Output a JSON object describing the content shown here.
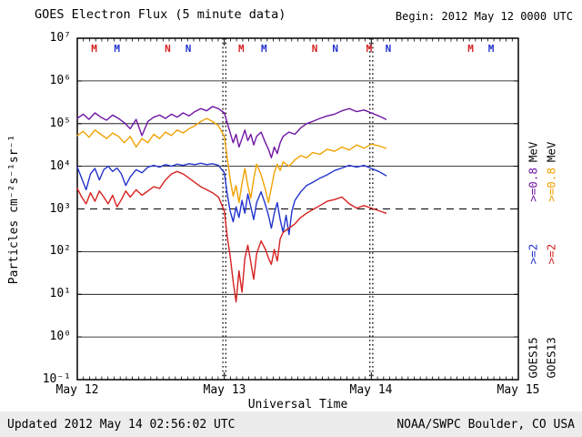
{
  "header": {
    "title": "GOES Electron Flux (5 minute data)",
    "begin": "Begin: 2012 May 12 0000 UTC"
  },
  "footer": {
    "updated": "Updated 2012 May 14 02:56:02 UTC",
    "credit": "NOAA/SWPC Boulder, CO USA"
  },
  "legend": {
    "mev": "MeV",
    "columns": [
      {
        "satellite": "GOES15",
        "ch2": ">=2",
        "ch08": ">=0.8",
        "ch2_color": "#2233cc",
        "ch08_color": "#6f15a3"
      },
      {
        "satellite": "GOES13",
        "ch2": ">=2",
        "ch08": ">=0.8",
        "ch2_color": "#d62020",
        "ch08_color": "#f0a202"
      }
    ]
  },
  "chart_data": {
    "type": "line",
    "title": "GOES Electron Flux (5 minute data)",
    "xlabel": "Universal Time",
    "ylabel": "Particles cm⁻²s⁻¹sr⁻¹",
    "x_axis": {
      "day_labels": [
        "May 12",
        "May 13",
        "May 14",
        "May 15"
      ],
      "range_days": [
        0,
        3
      ],
      "minor_tick_hours": 1
    },
    "y_axis": {
      "scale": "log10",
      "exponent_range": [
        -1,
        7
      ],
      "tick_labels": [
        "10⁷",
        "10⁶",
        "10⁵",
        "10⁴",
        "10³",
        "10²",
        "10¹",
        "10⁰",
        "10⁻¹"
      ]
    },
    "grid": {
      "solid_decade_exponents": [
        0,
        1,
        2,
        4,
        5,
        6
      ],
      "dashed_threshold_exponent": 3,
      "day_boundary_dotted_days": [
        1,
        2
      ]
    },
    "series": [
      {
        "id": "goes15-0.8mev",
        "name": "GOES15 >=0.8 MeV",
        "color": "#6f15a3",
        "points_t_days_log10_flux": [
          [
            0.0,
            5.12
          ],
          [
            0.04,
            5.22
          ],
          [
            0.08,
            5.1
          ],
          [
            0.12,
            5.25
          ],
          [
            0.16,
            5.15
          ],
          [
            0.2,
            5.08
          ],
          [
            0.24,
            5.2
          ],
          [
            0.28,
            5.12
          ],
          [
            0.32,
            5.02
          ],
          [
            0.36,
            4.88
          ],
          [
            0.4,
            5.1
          ],
          [
            0.44,
            4.72
          ],
          [
            0.48,
            5.05
          ],
          [
            0.52,
            5.15
          ],
          [
            0.56,
            5.2
          ],
          [
            0.6,
            5.12
          ],
          [
            0.64,
            5.22
          ],
          [
            0.68,
            5.15
          ],
          [
            0.72,
            5.25
          ],
          [
            0.76,
            5.18
          ],
          [
            0.8,
            5.28
          ],
          [
            0.84,
            5.35
          ],
          [
            0.88,
            5.3
          ],
          [
            0.92,
            5.4
          ],
          [
            0.96,
            5.35
          ],
          [
            1.0,
            5.25
          ],
          [
            1.03,
            4.9
          ],
          [
            1.06,
            4.55
          ],
          [
            1.08,
            4.75
          ],
          [
            1.1,
            4.45
          ],
          [
            1.12,
            4.65
          ],
          [
            1.14,
            4.85
          ],
          [
            1.16,
            4.6
          ],
          [
            1.18,
            4.75
          ],
          [
            1.2,
            4.5
          ],
          [
            1.22,
            4.7
          ],
          [
            1.25,
            4.8
          ],
          [
            1.28,
            4.55
          ],
          [
            1.3,
            4.4
          ],
          [
            1.32,
            4.2
          ],
          [
            1.34,
            4.45
          ],
          [
            1.36,
            4.3
          ],
          [
            1.38,
            4.55
          ],
          [
            1.4,
            4.7
          ],
          [
            1.44,
            4.8
          ],
          [
            1.48,
            4.75
          ],
          [
            1.52,
            4.9
          ],
          [
            1.56,
            5.0
          ],
          [
            1.6,
            5.05
          ],
          [
            1.65,
            5.12
          ],
          [
            1.7,
            5.18
          ],
          [
            1.75,
            5.22
          ],
          [
            1.8,
            5.3
          ],
          [
            1.85,
            5.35
          ],
          [
            1.9,
            5.28
          ],
          [
            1.95,
            5.32
          ],
          [
            2.0,
            5.25
          ],
          [
            2.05,
            5.18
          ],
          [
            2.1,
            5.1
          ]
        ]
      },
      {
        "id": "goes13-0.8mev",
        "name": "GOES13 >=0.8 MeV",
        "color": "#f0a202",
        "points_t_days_log10_flux": [
          [
            0.0,
            4.72
          ],
          [
            0.04,
            4.82
          ],
          [
            0.08,
            4.68
          ],
          [
            0.12,
            4.85
          ],
          [
            0.16,
            4.75
          ],
          [
            0.2,
            4.65
          ],
          [
            0.24,
            4.78
          ],
          [
            0.28,
            4.7
          ],
          [
            0.32,
            4.55
          ],
          [
            0.36,
            4.7
          ],
          [
            0.4,
            4.45
          ],
          [
            0.44,
            4.65
          ],
          [
            0.48,
            4.55
          ],
          [
            0.52,
            4.75
          ],
          [
            0.56,
            4.65
          ],
          [
            0.6,
            4.8
          ],
          [
            0.64,
            4.72
          ],
          [
            0.68,
            4.85
          ],
          [
            0.72,
            4.78
          ],
          [
            0.76,
            4.88
          ],
          [
            0.8,
            4.95
          ],
          [
            0.84,
            5.05
          ],
          [
            0.88,
            5.12
          ],
          [
            0.92,
            5.05
          ],
          [
            0.96,
            4.95
          ],
          [
            1.0,
            4.7
          ],
          [
            1.02,
            4.2
          ],
          [
            1.04,
            3.7
          ],
          [
            1.06,
            3.3
          ],
          [
            1.08,
            3.55
          ],
          [
            1.1,
            3.15
          ],
          [
            1.12,
            3.6
          ],
          [
            1.14,
            3.95
          ],
          [
            1.16,
            3.55
          ],
          [
            1.18,
            3.25
          ],
          [
            1.2,
            3.7
          ],
          [
            1.22,
            4.05
          ],
          [
            1.25,
            3.8
          ],
          [
            1.28,
            3.45
          ],
          [
            1.3,
            3.15
          ],
          [
            1.32,
            3.5
          ],
          [
            1.34,
            3.85
          ],
          [
            1.36,
            4.05
          ],
          [
            1.38,
            3.9
          ],
          [
            1.4,
            4.1
          ],
          [
            1.44,
            4.0
          ],
          [
            1.48,
            4.15
          ],
          [
            1.52,
            4.25
          ],
          [
            1.56,
            4.2
          ],
          [
            1.6,
            4.32
          ],
          [
            1.65,
            4.28
          ],
          [
            1.7,
            4.4
          ],
          [
            1.75,
            4.35
          ],
          [
            1.8,
            4.45
          ],
          [
            1.85,
            4.38
          ],
          [
            1.9,
            4.5
          ],
          [
            1.95,
            4.42
          ],
          [
            2.0,
            4.52
          ],
          [
            2.05,
            4.48
          ],
          [
            2.1,
            4.42
          ]
        ]
      },
      {
        "id": "goes15-2mev",
        "name": "GOES15 >=2 MeV",
        "color": "#2233cc",
        "points_t_days_log10_flux": [
          [
            0.0,
            3.98
          ],
          [
            0.03,
            3.72
          ],
          [
            0.06,
            3.45
          ],
          [
            0.09,
            3.82
          ],
          [
            0.12,
            3.95
          ],
          [
            0.15,
            3.68
          ],
          [
            0.18,
            3.92
          ],
          [
            0.21,
            4.0
          ],
          [
            0.24,
            3.88
          ],
          [
            0.27,
            3.96
          ],
          [
            0.3,
            3.82
          ],
          [
            0.33,
            3.55
          ],
          [
            0.36,
            3.75
          ],
          [
            0.4,
            3.92
          ],
          [
            0.44,
            3.85
          ],
          [
            0.48,
            3.98
          ],
          [
            0.52,
            4.02
          ],
          [
            0.56,
            3.98
          ],
          [
            0.6,
            4.04
          ],
          [
            0.64,
            4.0
          ],
          [
            0.68,
            4.05
          ],
          [
            0.72,
            4.02
          ],
          [
            0.76,
            4.06
          ],
          [
            0.8,
            4.04
          ],
          [
            0.84,
            4.07
          ],
          [
            0.88,
            4.04
          ],
          [
            0.92,
            4.06
          ],
          [
            0.96,
            4.02
          ],
          [
            1.0,
            3.85
          ],
          [
            1.02,
            3.35
          ],
          [
            1.04,
            2.95
          ],
          [
            1.06,
            2.7
          ],
          [
            1.08,
            3.05
          ],
          [
            1.1,
            2.8
          ],
          [
            1.12,
            3.2
          ],
          [
            1.14,
            2.9
          ],
          [
            1.16,
            3.35
          ],
          [
            1.18,
            3.05
          ],
          [
            1.2,
            2.75
          ],
          [
            1.22,
            3.15
          ],
          [
            1.25,
            3.4
          ],
          [
            1.28,
            3.1
          ],
          [
            1.3,
            2.85
          ],
          [
            1.32,
            2.55
          ],
          [
            1.34,
            2.9
          ],
          [
            1.36,
            3.15
          ],
          [
            1.38,
            2.75
          ],
          [
            1.4,
            2.45
          ],
          [
            1.42,
            2.85
          ],
          [
            1.44,
            2.4
          ],
          [
            1.46,
            2.95
          ],
          [
            1.48,
            3.2
          ],
          [
            1.52,
            3.4
          ],
          [
            1.56,
            3.55
          ],
          [
            1.6,
            3.62
          ],
          [
            1.65,
            3.72
          ],
          [
            1.7,
            3.8
          ],
          [
            1.75,
            3.9
          ],
          [
            1.8,
            3.96
          ],
          [
            1.85,
            4.02
          ],
          [
            1.9,
            3.98
          ],
          [
            1.95,
            4.02
          ],
          [
            2.0,
            3.95
          ],
          [
            2.05,
            3.88
          ],
          [
            2.1,
            3.78
          ]
        ]
      },
      {
        "id": "goes13-2mev",
        "name": "GOES13 >=2 MeV",
        "color": "#d62020",
        "points_t_days_log10_flux": [
          [
            0.0,
            3.48
          ],
          [
            0.03,
            3.28
          ],
          [
            0.06,
            3.12
          ],
          [
            0.09,
            3.38
          ],
          [
            0.12,
            3.18
          ],
          [
            0.15,
            3.42
          ],
          [
            0.18,
            3.28
          ],
          [
            0.21,
            3.12
          ],
          [
            0.24,
            3.32
          ],
          [
            0.27,
            3.05
          ],
          [
            0.3,
            3.22
          ],
          [
            0.33,
            3.42
          ],
          [
            0.36,
            3.28
          ],
          [
            0.4,
            3.45
          ],
          [
            0.44,
            3.32
          ],
          [
            0.48,
            3.42
          ],
          [
            0.52,
            3.52
          ],
          [
            0.56,
            3.48
          ],
          [
            0.6,
            3.68
          ],
          [
            0.64,
            3.82
          ],
          [
            0.68,
            3.88
          ],
          [
            0.72,
            3.82
          ],
          [
            0.76,
            3.72
          ],
          [
            0.8,
            3.62
          ],
          [
            0.84,
            3.52
          ],
          [
            0.88,
            3.45
          ],
          [
            0.92,
            3.38
          ],
          [
            0.96,
            3.28
          ],
          [
            1.0,
            2.95
          ],
          [
            1.02,
            2.35
          ],
          [
            1.04,
            1.9
          ],
          [
            1.06,
            1.3
          ],
          [
            1.08,
            0.82
          ],
          [
            1.1,
            1.55
          ],
          [
            1.12,
            1.05
          ],
          [
            1.14,
            1.85
          ],
          [
            1.16,
            2.15
          ],
          [
            1.18,
            1.75
          ],
          [
            1.2,
            1.35
          ],
          [
            1.22,
            1.95
          ],
          [
            1.25,
            2.25
          ],
          [
            1.28,
            2.05
          ],
          [
            1.3,
            1.85
          ],
          [
            1.32,
            1.7
          ],
          [
            1.34,
            2.05
          ],
          [
            1.36,
            1.78
          ],
          [
            1.38,
            2.3
          ],
          [
            1.4,
            2.45
          ],
          [
            1.44,
            2.55
          ],
          [
            1.48,
            2.65
          ],
          [
            1.52,
            2.8
          ],
          [
            1.56,
            2.9
          ],
          [
            1.6,
            2.98
          ],
          [
            1.65,
            3.08
          ],
          [
            1.7,
            3.18
          ],
          [
            1.75,
            3.22
          ],
          [
            1.8,
            3.28
          ],
          [
            1.85,
            3.12
          ],
          [
            1.9,
            3.02
          ],
          [
            1.95,
            3.08
          ],
          [
            2.0,
            3.02
          ],
          [
            2.05,
            2.96
          ],
          [
            2.1,
            2.9
          ]
        ]
      }
    ],
    "noon_midnight_markers": [
      {
        "t": 0.115,
        "label": "M",
        "color": "#d62020"
      },
      {
        "t": 0.27,
        "label": "M",
        "color": "#2233cc"
      },
      {
        "t": 0.615,
        "label": "N",
        "color": "#d62020"
      },
      {
        "t": 0.755,
        "label": "N",
        "color": "#2233cc"
      },
      {
        "t": 1.115,
        "label": "M",
        "color": "#d62020"
      },
      {
        "t": 1.27,
        "label": "M",
        "color": "#2233cc"
      },
      {
        "t": 1.615,
        "label": "N",
        "color": "#d62020"
      },
      {
        "t": 1.755,
        "label": "N",
        "color": "#2233cc"
      },
      {
        "t": 1.985,
        "label": "M",
        "color": "#d62020"
      },
      {
        "t": 2.115,
        "label": "N",
        "color": "#2233cc"
      },
      {
        "t": 2.675,
        "label": "M",
        "color": "#d62020"
      },
      {
        "t": 2.815,
        "label": "M",
        "color": "#2233cc"
      }
    ]
  }
}
